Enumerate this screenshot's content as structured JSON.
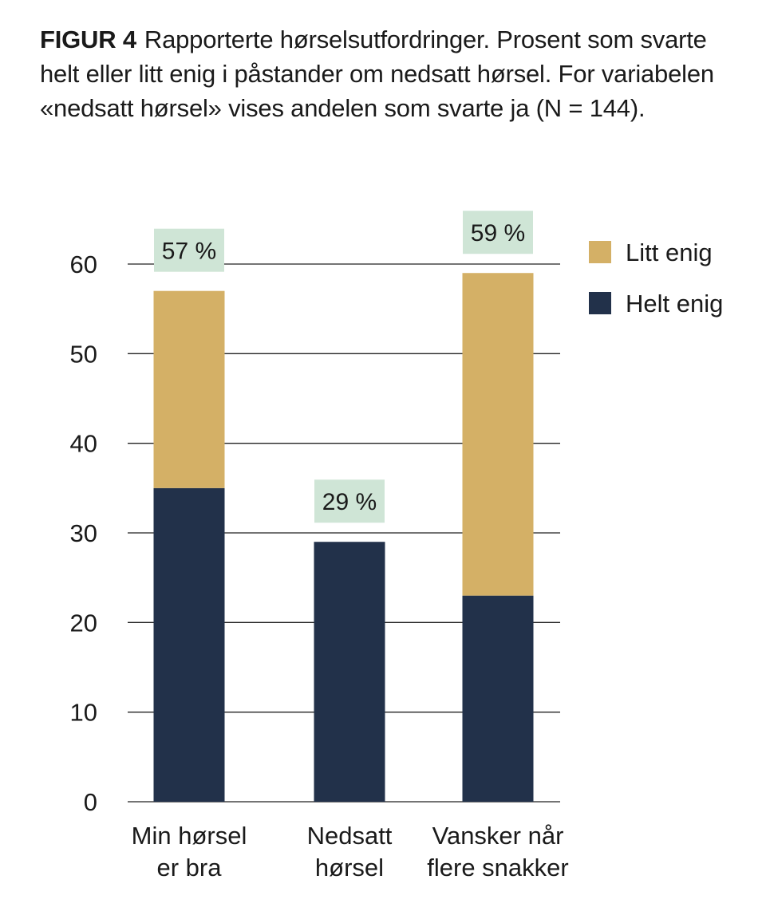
{
  "caption": {
    "label": "FIGUR 4",
    "text": "Rapporterte hørselsutfordringer. Prosent som svarte helt eller litt enig i påstander om nedsatt hørsel. For variabelen «nedsatt hørsel» vises andelen som svarte ja (N = 144)."
  },
  "chart_data": {
    "type": "bar",
    "stacked": true,
    "categories": [
      [
        "Min hørsel",
        "er bra"
      ],
      [
        "Nedsatt",
        "hørsel"
      ],
      [
        "Vansker når",
        "flere snakker"
      ]
    ],
    "series": [
      {
        "name": "Helt enig",
        "color": "#22314a",
        "values": [
          35,
          29,
          23
        ]
      },
      {
        "name": "Litt enig",
        "color": "#d4b066",
        "values": [
          22,
          0,
          36
        ]
      }
    ],
    "totals": [
      "57 %",
      "29 %",
      "59 %"
    ],
    "total_label_bg": "#cfe5d6",
    "yticks": [
      0,
      10,
      20,
      30,
      40,
      50,
      60
    ],
    "ylim": [
      0,
      60
    ],
    "grid": true,
    "legend_position": "top-right",
    "legend_order": [
      "Litt enig",
      "Helt enig"
    ]
  }
}
